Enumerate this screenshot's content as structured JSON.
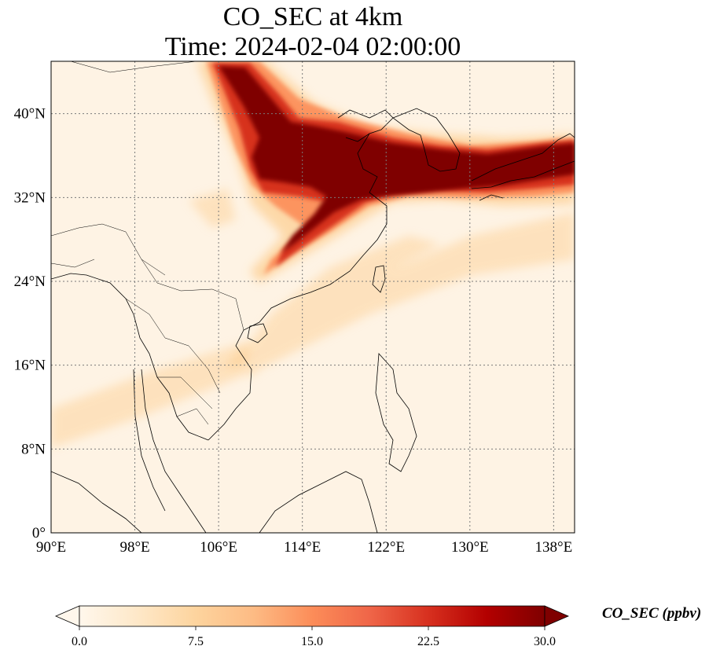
{
  "title": {
    "line1": "CO_SEC at 4km",
    "line2": "Time: 2024-02-04 02:00:00"
  },
  "map": {
    "lon_range": [
      90,
      140
    ],
    "lat_range": [
      0,
      45
    ],
    "lon_ticks": [
      {
        "value": 90,
        "label": "90°E"
      },
      {
        "value": 98,
        "label": "98°E"
      },
      {
        "value": 106,
        "label": "106°E"
      },
      {
        "value": 114,
        "label": "114°E"
      },
      {
        "value": 122,
        "label": "122°E"
      },
      {
        "value": 130,
        "label": "130°E"
      },
      {
        "value": 138,
        "label": "138°E"
      }
    ],
    "lat_ticks": [
      {
        "value": 0,
        "label": "0°"
      },
      {
        "value": 8,
        "label": "8°N"
      },
      {
        "value": 16,
        "label": "16°N"
      },
      {
        "value": 24,
        "label": "24°N"
      },
      {
        "value": 32,
        "label": "32°N"
      },
      {
        "value": 40,
        "label": "40°N"
      }
    ],
    "gridlines": true,
    "background_color": "#fef3e4",
    "plume_colors": [
      "#fdd49e",
      "#fc8d59",
      "#d7301f",
      "#7f0000"
    ]
  },
  "colorbar": {
    "label": "CO_SEC (ppbv)",
    "min": 0.0,
    "max": 30.0,
    "extend": "both",
    "ticks": [
      {
        "value": 0.0,
        "label": "0.0"
      },
      {
        "value": 7.5,
        "label": "7.5"
      },
      {
        "value": 15.0,
        "label": "15.0"
      },
      {
        "value": 22.5,
        "label": "22.5"
      },
      {
        "value": 30.0,
        "label": "30.0"
      }
    ],
    "colormap": [
      "#fff7ec",
      "#fee8c8",
      "#fdd49e",
      "#fdbb84",
      "#fc8d59",
      "#ef6548",
      "#d7301f",
      "#b30000",
      "#7f0000"
    ]
  }
}
